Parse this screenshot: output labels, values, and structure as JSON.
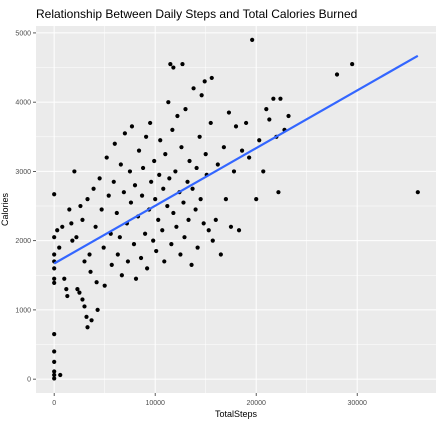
{
  "chart_data": {
    "type": "scatter",
    "title": "Relationship Between Daily Steps and Total Calories Burned",
    "xlabel": "TotalSteps",
    "ylabel": "Calories",
    "xlim": [
      -1800,
      37800
    ],
    "ylim": [
      -200,
      5100
    ],
    "x_ticks": [
      0,
      10000,
      20000,
      30000
    ],
    "x_tick_labels": [
      "0",
      "10000",
      "20000",
      "30000"
    ],
    "y_ticks": [
      0,
      1000,
      2000,
      3000,
      4000,
      5000
    ],
    "y_tick_labels": [
      "0",
      "1000",
      "2000",
      "3000",
      "4000",
      "5000"
    ],
    "grid": true,
    "background": "#ebebeb",
    "grid_color": "#ffffff",
    "point_color": "#000000",
    "trend_line": {
      "color": "#3366ff",
      "x": [
        0,
        36000
      ],
      "y": [
        1670,
        4670
      ]
    },
    "points": [
      [
        0,
        2670
      ],
      [
        0,
        2050
      ],
      [
        0,
        1800
      ],
      [
        0,
        1700
      ],
      [
        0,
        1600
      ],
      [
        0,
        1450
      ],
      [
        0,
        1390
      ],
      [
        0,
        650
      ],
      [
        0,
        400
      ],
      [
        0,
        250
      ],
      [
        0,
        110
      ],
      [
        0,
        60
      ],
      [
        0,
        10
      ],
      [
        600,
        60
      ],
      [
        300,
        2150
      ],
      [
        500,
        1900
      ],
      [
        800,
        2200
      ],
      [
        1000,
        1450
      ],
      [
        1200,
        1300
      ],
      [
        1300,
        1200
      ],
      [
        1500,
        2450
      ],
      [
        1700,
        2250
      ],
      [
        1800,
        2000
      ],
      [
        2000,
        3000
      ],
      [
        2200,
        2050
      ],
      [
        2300,
        1300
      ],
      [
        2500,
        1250
      ],
      [
        2800,
        1150
      ],
      [
        3000,
        1050
      ],
      [
        3200,
        900
      ],
      [
        3300,
        750
      ],
      [
        3700,
        850
      ],
      [
        2600,
        2500
      ],
      [
        2800,
        2300
      ],
      [
        3000,
        1700
      ],
      [
        3300,
        2600
      ],
      [
        3500,
        1800
      ],
      [
        3600,
        1550
      ],
      [
        3900,
        2750
      ],
      [
        4100,
        2200
      ],
      [
        4200,
        1400
      ],
      [
        4300,
        1000
      ],
      [
        4500,
        2900
      ],
      [
        4700,
        2450
      ],
      [
        4900,
        1900
      ],
      [
        5000,
        1350
      ],
      [
        5200,
        3200
      ],
      [
        5400,
        2650
      ],
      [
        5600,
        2100
      ],
      [
        5700,
        1650
      ],
      [
        5900,
        2850
      ],
      [
        6000,
        3400
      ],
      [
        6200,
        2400
      ],
      [
        6300,
        1800
      ],
      [
        6500,
        2050
      ],
      [
        6600,
        3100
      ],
      [
        6700,
        1500
      ],
      [
        6900,
        2700
      ],
      [
        7000,
        3550
      ],
      [
        7200,
        2250
      ],
      [
        7300,
        1700
      ],
      [
        7500,
        3000
      ],
      [
        7600,
        2550
      ],
      [
        7700,
        3650
      ],
      [
        7900,
        1950
      ],
      [
        8000,
        2800
      ],
      [
        8100,
        1450
      ],
      [
        8300,
        2350
      ],
      [
        8400,
        3300
      ],
      [
        8600,
        1750
      ],
      [
        8700,
        2650
      ],
      [
        8800,
        3050
      ],
      [
        9000,
        2100
      ],
      [
        9100,
        3500
      ],
      [
        9200,
        1600
      ],
      [
        9400,
        2450
      ],
      [
        9500,
        3700
      ],
      [
        9600,
        2850
      ],
      [
        9800,
        2000
      ],
      [
        9900,
        3150
      ],
      [
        10000,
        2600
      ],
      [
        10100,
        1850
      ],
      [
        10300,
        2300
      ],
      [
        10400,
        2950
      ],
      [
        10500,
        3450
      ],
      [
        10700,
        2150
      ],
      [
        10800,
        2750
      ],
      [
        10900,
        1700
      ],
      [
        11000,
        3250
      ],
      [
        11200,
        2500
      ],
      [
        11300,
        4000
      ],
      [
        11400,
        2900
      ],
      [
        11600,
        1950
      ],
      [
        11700,
        3600
      ],
      [
        11800,
        2400
      ],
      [
        12000,
        3000
      ],
      [
        12100,
        2200
      ],
      [
        12200,
        3800
      ],
      [
        12400,
        2700
      ],
      [
        12500,
        1800
      ],
      [
        12600,
        3350
      ],
      [
        12800,
        2550
      ],
      [
        12900,
        2050
      ],
      [
        13000,
        3900
      ],
      [
        13200,
        2850
      ],
      [
        13300,
        2300
      ],
      [
        13400,
        3150
      ],
      [
        13600,
        1650
      ],
      [
        13700,
        2750
      ],
      [
        13800,
        4200
      ],
      [
        14000,
        2450
      ],
      [
        14100,
        3050
      ],
      [
        14200,
        1900
      ],
      [
        14400,
        3500
      ],
      [
        14500,
        2600
      ],
      [
        14600,
        4100
      ],
      [
        14800,
        2250
      ],
      [
        15000,
        3250
      ],
      [
        15100,
        2950
      ],
      [
        15300,
        2150
      ],
      [
        15500,
        3700
      ],
      [
        15700,
        2000
      ],
      [
        16000,
        2300
      ],
      [
        16200,
        3100
      ],
      [
        16500,
        1800
      ],
      [
        16800,
        3350
      ],
      [
        17000,
        2600
      ],
      [
        17300,
        3850
      ],
      [
        17500,
        2200
      ],
      [
        17800,
        3000
      ],
      [
        18000,
        3650
      ],
      [
        18300,
        2150
      ],
      [
        18600,
        3300
      ],
      [
        19000,
        3700
      ],
      [
        19300,
        3200
      ],
      [
        19600,
        4900
      ],
      [
        20000,
        2600
      ],
      [
        20300,
        3450
      ],
      [
        20700,
        3000
      ],
      [
        21000,
        3900
      ],
      [
        21300,
        3750
      ],
      [
        21700,
        4050
      ],
      [
        22000,
        3500
      ],
      [
        22400,
        4050
      ],
      [
        22800,
        3600
      ],
      [
        23200,
        3800
      ],
      [
        11500,
        4550
      ],
      [
        11800,
        4500
      ],
      [
        12700,
        4550
      ],
      [
        14900,
        4300
      ],
      [
        15600,
        4350
      ],
      [
        22200,
        2700
      ],
      [
        28000,
        4400
      ],
      [
        29500,
        4550
      ],
      [
        36000,
        2700
      ]
    ]
  }
}
